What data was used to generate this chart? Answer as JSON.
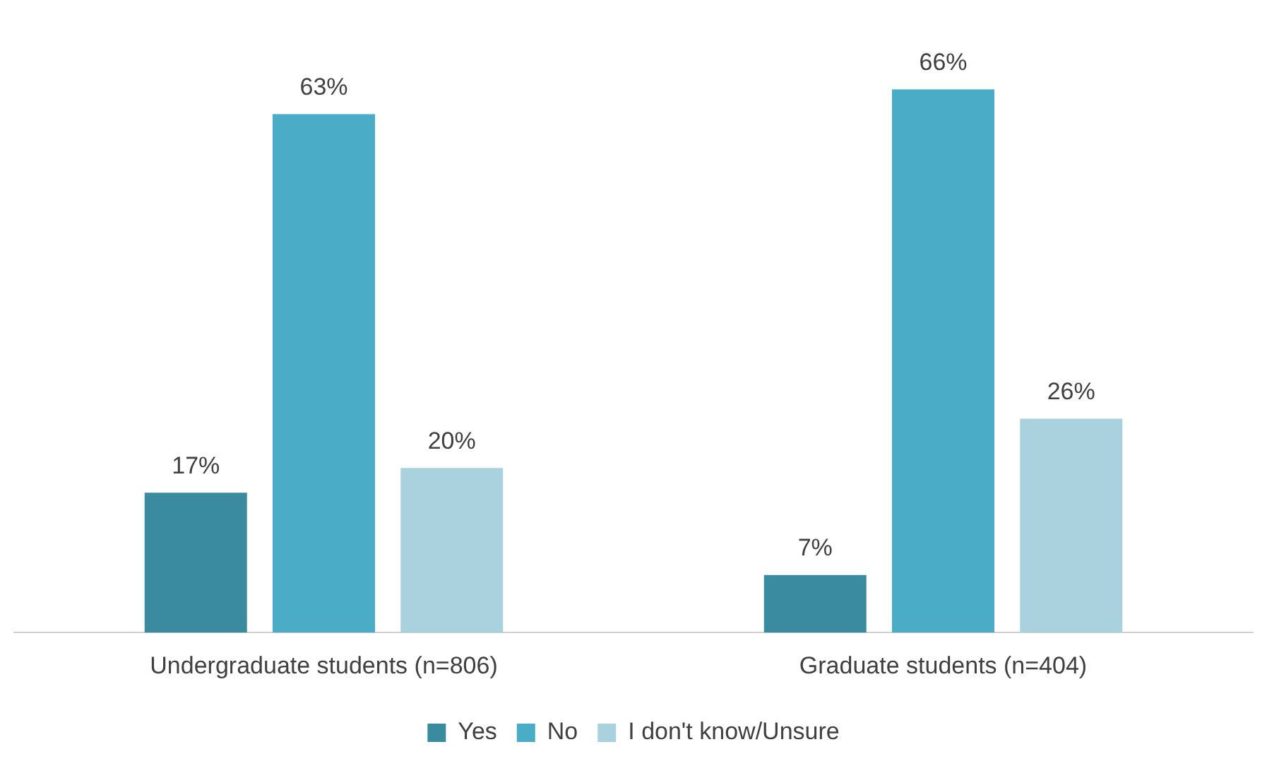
{
  "chart_data": {
    "type": "bar",
    "categories": [
      "Undergraduate students (n=806)",
      "Graduate students (n=404)"
    ],
    "series": [
      {
        "name": "Yes",
        "color": "#3b8ba0",
        "values": [
          17,
          7
        ],
        "value_labels": [
          "17%",
          "7%"
        ]
      },
      {
        "name": "No",
        "color": "#4aacc6",
        "values": [
          63,
          66
        ],
        "value_labels": [
          "63%",
          "66%"
        ]
      },
      {
        "name": "I don't know/Unsure",
        "color": "#a9d1de",
        "values": [
          20,
          26
        ],
        "value_labels": [
          "20%",
          "26%"
        ]
      }
    ],
    "legend": "bottom",
    "grid": false
  }
}
